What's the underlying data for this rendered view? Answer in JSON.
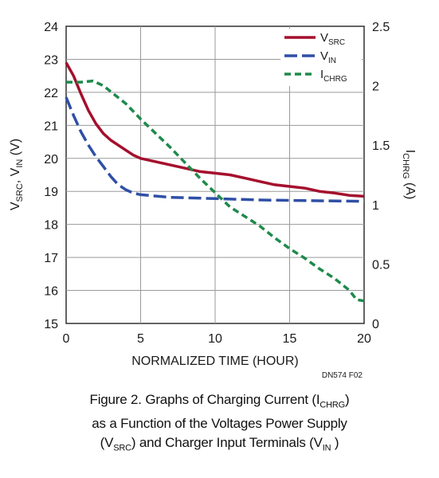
{
  "chart_data": {
    "type": "line",
    "x_axis": {
      "label": "NORMALIZED TIME (HOUR)",
      "range": [
        0,
        20
      ],
      "ticks": [
        "0",
        "5",
        "10",
        "15",
        "20"
      ]
    },
    "y_left": {
      "label_parts": [
        "V",
        "SRC",
        ", V",
        "IN",
        " (V)"
      ],
      "range": [
        15,
        24
      ],
      "ticks": [
        "15",
        "16",
        "17",
        "18",
        "19",
        "20",
        "21",
        "22",
        "23",
        "24"
      ]
    },
    "y_right": {
      "label_parts": [
        "I",
        "CHRG",
        " (A)"
      ],
      "range": [
        0,
        2.5
      ],
      "ticks": [
        "0",
        "0.5",
        "1",
        "1.5",
        "2",
        "2.5"
      ]
    },
    "grid": true,
    "legend_position": "top-right",
    "series": [
      {
        "name_main": "V",
        "name_sub": "SRC",
        "axis": "left",
        "color": "#a50f2d",
        "dash": "solid",
        "points": [
          [
            0,
            22.9
          ],
          [
            0.5,
            22.5
          ],
          [
            1,
            21.95
          ],
          [
            1.5,
            21.45
          ],
          [
            2,
            21.05
          ],
          [
            2.5,
            20.75
          ],
          [
            3,
            20.55
          ],
          [
            3.5,
            20.4
          ],
          [
            4,
            20.25
          ],
          [
            4.5,
            20.1
          ],
          [
            5,
            20.0
          ],
          [
            6,
            19.9
          ],
          [
            7,
            19.8
          ],
          [
            8,
            19.7
          ],
          [
            9,
            19.6
          ],
          [
            10,
            19.55
          ],
          [
            11,
            19.5
          ],
          [
            12,
            19.4
          ],
          [
            13,
            19.3
          ],
          [
            14,
            19.2
          ],
          [
            15,
            19.15
          ],
          [
            16,
            19.1
          ],
          [
            17,
            19.0
          ],
          [
            18,
            18.95
          ],
          [
            19,
            18.88
          ],
          [
            20,
            18.85
          ]
        ]
      },
      {
        "name_main": "V",
        "name_sub": "IN",
        "axis": "left",
        "color": "#2f4fa6",
        "dash": "long-dash",
        "points": [
          [
            0,
            21.85
          ],
          [
            0.5,
            21.3
          ],
          [
            1,
            20.8
          ],
          [
            1.5,
            20.4
          ],
          [
            2,
            20.05
          ],
          [
            2.5,
            19.75
          ],
          [
            3,
            19.45
          ],
          [
            3.5,
            19.2
          ],
          [
            4,
            19.05
          ],
          [
            4.5,
            18.95
          ],
          [
            5,
            18.9
          ],
          [
            7,
            18.82
          ],
          [
            10,
            18.78
          ],
          [
            13,
            18.74
          ],
          [
            16,
            18.72
          ],
          [
            20,
            18.7
          ]
        ]
      },
      {
        "name_main": "I",
        "name_sub": "CHRG",
        "axis": "right",
        "color": "#1f8a4c",
        "dash": "short-dash",
        "points": [
          [
            0,
            2.03
          ],
          [
            1,
            2.03
          ],
          [
            1.8,
            2.04
          ],
          [
            2.5,
            2.0
          ],
          [
            3,
            1.95
          ],
          [
            4,
            1.85
          ],
          [
            5,
            1.72
          ],
          [
            6,
            1.6
          ],
          [
            7,
            1.48
          ],
          [
            8,
            1.35
          ],
          [
            9,
            1.22
          ],
          [
            10,
            1.1
          ],
          [
            11,
            0.98
          ],
          [
            12,
            0.9
          ],
          [
            13,
            0.82
          ],
          [
            14,
            0.72
          ],
          [
            15,
            0.63
          ],
          [
            16,
            0.55
          ],
          [
            17,
            0.46
          ],
          [
            18,
            0.38
          ],
          [
            19,
            0.28
          ],
          [
            19.5,
            0.2
          ],
          [
            20,
            0.19
          ]
        ]
      }
    ],
    "figure_code": "DN574 F02"
  },
  "caption": {
    "line1": "Figure 2. Graphs of Charging Current (I",
    "line1_sub": "CHRG",
    "line1_end": ")",
    "line2": "as a Function of the Voltages Power Supply",
    "line3_start": "(V",
    "line3_sub": "SRC",
    "line3_mid": ") and Charger Input Terminals (V",
    "line3_sub2": "IN",
    "line3_end": " )"
  }
}
